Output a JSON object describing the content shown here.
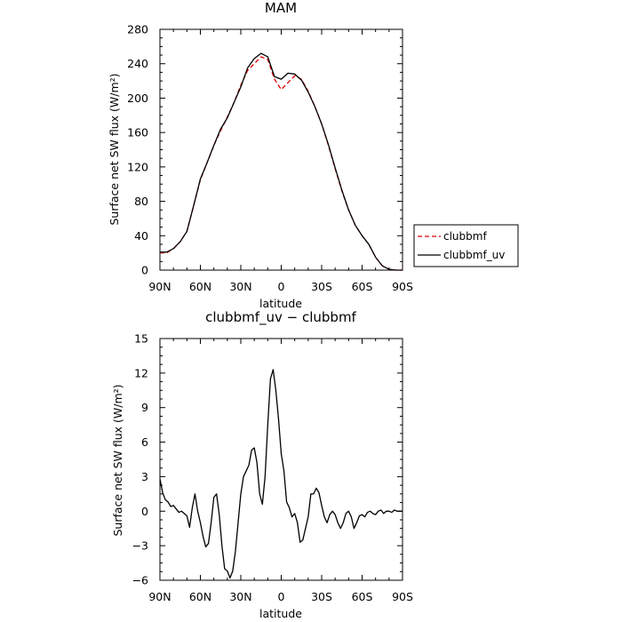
{
  "chart_data": [
    {
      "type": "line",
      "title": "MAM",
      "xlabel": "latitude",
      "ylabel": "Surface net SW flux (W/m²)",
      "ylim": [
        0,
        280
      ],
      "xlim": [
        90,
        -90
      ],
      "yticks": [
        0,
        40,
        80,
        120,
        160,
        200,
        240,
        280
      ],
      "xticks": [
        90,
        60,
        30,
        0,
        -30,
        -60,
        -90
      ],
      "xtick_labels": [
        "90N",
        "60N",
        "30N",
        "0",
        "30S",
        "60S",
        "90S"
      ],
      "legend": {
        "position": "right"
      },
      "series": [
        {
          "name": "clubbmf",
          "color": "#e00000",
          "dash": "dashed",
          "x": [
            90,
            85,
            80,
            75,
            70,
            65,
            60,
            55,
            50,
            45,
            40,
            35,
            30,
            25,
            20,
            15,
            10,
            5,
            0,
            -5,
            -10,
            -15,
            -20,
            -25,
            -30,
            -35,
            -40,
            -45,
            -50,
            -55,
            -60,
            -65,
            -70,
            -75,
            -80,
            -85,
            -90
          ],
          "y": [
            20,
            20,
            25,
            33,
            45,
            75,
            105,
            125,
            145,
            162,
            178,
            195,
            215,
            232,
            240,
            248,
            245,
            222,
            210,
            218,
            226,
            222,
            208,
            190,
            170,
            145,
            118,
            92,
            70,
            52,
            40,
            30,
            15,
            5,
            1,
            0,
            0
          ]
        },
        {
          "name": "clubbmf_uv",
          "color": "#000000",
          "dash": "solid",
          "x": [
            90,
            85,
            80,
            75,
            70,
            65,
            60,
            55,
            50,
            45,
            40,
            35,
            30,
            25,
            20,
            15,
            10,
            5,
            0,
            -5,
            -10,
            -15,
            -20,
            -25,
            -30,
            -35,
            -40,
            -45,
            -50,
            -55,
            -60,
            -65,
            -70,
            -75,
            -80,
            -85,
            -90
          ],
          "y": [
            21,
            21,
            25,
            33,
            45,
            75,
            106,
            125,
            145,
            164,
            177,
            195,
            213,
            235,
            246,
            252,
            248,
            225,
            222,
            229,
            228,
            221,
            207,
            190,
            170,
            146,
            119,
            93,
            70,
            52,
            40,
            30,
            15,
            5,
            1,
            0,
            0
          ]
        }
      ]
    },
    {
      "type": "line",
      "title": "clubbmf_uv − clubbmf",
      "xlabel": "latitude",
      "ylabel": "Surface net SW flux (W/m²)",
      "ylim": [
        -6,
        15
      ],
      "xlim": [
        90,
        -90
      ],
      "yticks": [
        -6,
        -3,
        0,
        3,
        6,
        9,
        12,
        15
      ],
      "xticks": [
        90,
        60,
        30,
        0,
        -30,
        -60,
        -90
      ],
      "xtick_labels": [
        "90N",
        "60N",
        "30N",
        "0",
        "30S",
        "60S",
        "90S"
      ],
      "series": [
        {
          "color": "#000000",
          "dash": "solid",
          "x": [
            90,
            88,
            86,
            84,
            82,
            80,
            78,
            76,
            74,
            72,
            70,
            68,
            66,
            64,
            62,
            60,
            58,
            56,
            54,
            52,
            50,
            48,
            46,
            44,
            42,
            40,
            38,
            36,
            34,
            32,
            30,
            28,
            26,
            24,
            22,
            20,
            18,
            16,
            14,
            12,
            10,
            8,
            6,
            4,
            2,
            0,
            -2,
            -4,
            -6,
            -8,
            -10,
            -12,
            -14,
            -16,
            -18,
            -20,
            -22,
            -24,
            -26,
            -28,
            -30,
            -32,
            -34,
            -36,
            -38,
            -40,
            -42,
            -44,
            -46,
            -48,
            -50,
            -52,
            -54,
            -56,
            -58,
            -60,
            -62,
            -64,
            -66,
            -68,
            -70,
            -72,
            -74,
            -76,
            -78,
            -80,
            -82,
            -84,
            -86,
            -88,
            -90
          ],
          "y": [
            2.8,
            1.6,
            1.0,
            0.8,
            0.4,
            0.5,
            0.2,
            -0.1,
            0.0,
            -0.2,
            -0.4,
            -1.4,
            0.3,
            1.5,
            0.0,
            -1.0,
            -2.2,
            -3.1,
            -2.8,
            -1.0,
            1.2,
            1.5,
            -0.3,
            -3.0,
            -5.0,
            -5.2,
            -5.8,
            -5.2,
            -3.5,
            -1.0,
            1.5,
            3.0,
            3.5,
            4.0,
            5.3,
            5.5,
            4.2,
            1.5,
            0.6,
            3.0,
            7.5,
            11.5,
            12.3,
            10.5,
            8.0,
            5.0,
            3.5,
            0.8,
            0.3,
            -0.5,
            -0.2,
            -1.0,
            -2.7,
            -2.5,
            -1.5,
            -0.5,
            1.5,
            1.5,
            2.0,
            1.6,
            0.5,
            -0.5,
            -1.0,
            -0.3,
            0.0,
            -0.3,
            -1.0,
            -1.5,
            -1.0,
            -0.2,
            0.0,
            -0.5,
            -1.5,
            -1.0,
            -0.4,
            -0.3,
            -0.5,
            -0.1,
            0.0,
            -0.2,
            -0.3,
            0.0,
            0.1,
            -0.2,
            0.0,
            0.0,
            -0.1,
            0.1,
            0.0,
            0.0,
            0.0
          ]
        }
      ]
    }
  ]
}
